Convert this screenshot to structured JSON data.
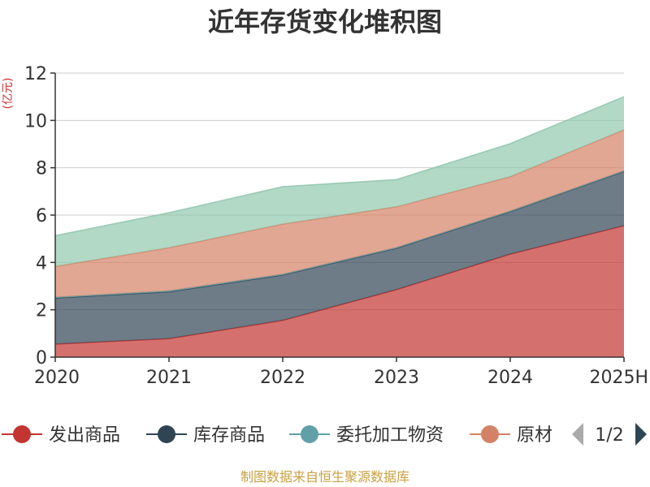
{
  "chart_data": {
    "type": "area",
    "stacked": true,
    "title": "近年存货变化堆积图",
    "ylabel": "(亿元)",
    "categories": [
      "2020",
      "2021",
      "2022",
      "2023",
      "2024",
      "2025H"
    ],
    "ylim": [
      0,
      12
    ],
    "yticks": [
      0,
      2,
      4,
      6,
      8,
      10,
      12
    ],
    "grid": true,
    "series": [
      {
        "name": "发出商品",
        "values": [
          0.55,
          0.78,
          1.55,
          2.85,
          4.35,
          5.55
        ],
        "color": "#c23531"
      },
      {
        "name": "库存商品",
        "values": [
          1.95,
          1.98,
          1.92,
          1.75,
          1.8,
          2.3
        ],
        "color": "#2f4554"
      },
      {
        "name": "委托加工物资",
        "values": [
          0.03,
          0.04,
          0.03,
          0.03,
          0.02,
          0.02
        ],
        "color": "#61a0a8"
      },
      {
        "name": "原材料",
        "values": [
          1.3,
          1.82,
          2.12,
          1.72,
          1.45,
          1.73
        ],
        "color": "#d48265"
      },
      {
        "name": "",
        "values": [
          1.3,
          1.48,
          1.58,
          1.15,
          1.4,
          1.4
        ],
        "color": "#91c7ae"
      }
    ],
    "legend": {
      "placement": "bottom",
      "visible_items": [
        "发出商品",
        "库存商品",
        "委托加工物资",
        "原材"
      ],
      "page": "1/2"
    },
    "source": "制图数据来自恒生聚源数据库"
  }
}
